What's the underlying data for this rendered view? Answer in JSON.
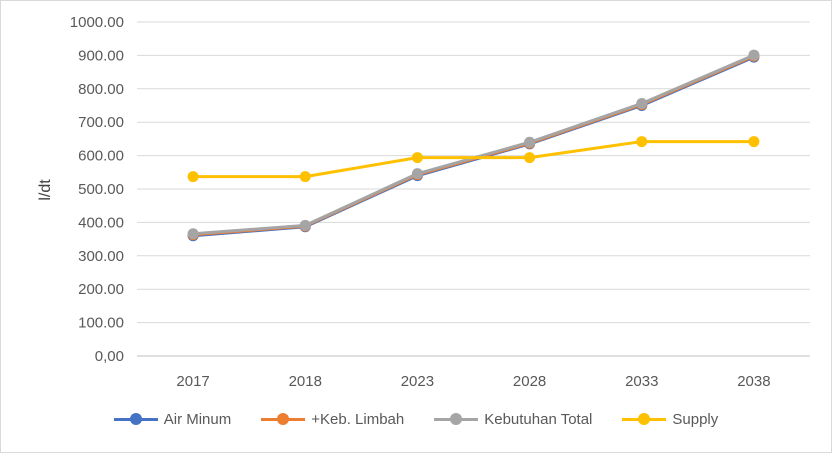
{
  "chart_data": {
    "type": "line",
    "title": "",
    "xlabel": "",
    "ylabel": "l/dt",
    "ylim": [
      0,
      1000
    ],
    "yticks": [
      0,
      100,
      200,
      300,
      400,
      500,
      600,
      700,
      800,
      900,
      1000
    ],
    "ytick_labels": [
      "0,00",
      "100.00",
      "200.00",
      "300.00",
      "400.00",
      "500.00",
      "600.00",
      "700.00",
      "800.00",
      "900.00",
      "1000.00"
    ],
    "categories": [
      "2017",
      "2018",
      "2023",
      "2028",
      "2033",
      "2038"
    ],
    "grid": true,
    "legend_position": "bottom",
    "series": [
      {
        "name": "Air Minum",
        "color": "#4472c4",
        "values": [
          360,
          387,
          540,
          635,
          750,
          895
        ]
      },
      {
        "name": "+Keb. Limbah",
        "color": "#ed7d31",
        "values": [
          363,
          389,
          543,
          637,
          753,
          898
        ]
      },
      {
        "name": "Kebutuhan Total",
        "color": "#a5a5a5",
        "values": [
          366,
          391,
          546,
          640,
          756,
          901
        ]
      },
      {
        "name": "Supply",
        "color": "#ffc000",
        "values": [
          537,
          537,
          594,
          594,
          642,
          642
        ]
      }
    ]
  }
}
